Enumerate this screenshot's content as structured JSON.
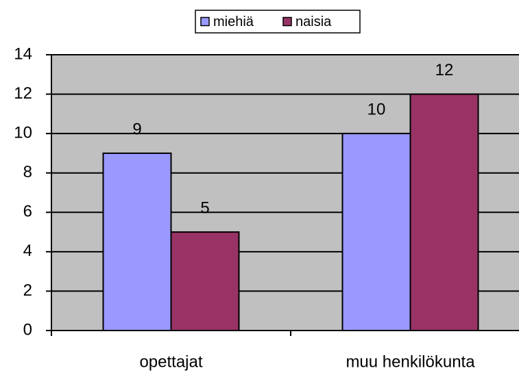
{
  "chart_data": {
    "type": "bar",
    "categories": [
      "opettajat",
      "muu henkilökunta"
    ],
    "series": [
      {
        "name": "miehiä",
        "color": "#9999ff",
        "values": [
          9,
          10
        ]
      },
      {
        "name": "naisia",
        "color": "#993366",
        "values": [
          5,
          12
        ]
      }
    ],
    "ylim": [
      0,
      14
    ],
    "yticks": [
      0,
      2,
      4,
      6,
      8,
      10,
      12,
      14
    ],
    "grid": true,
    "legend": "top"
  }
}
